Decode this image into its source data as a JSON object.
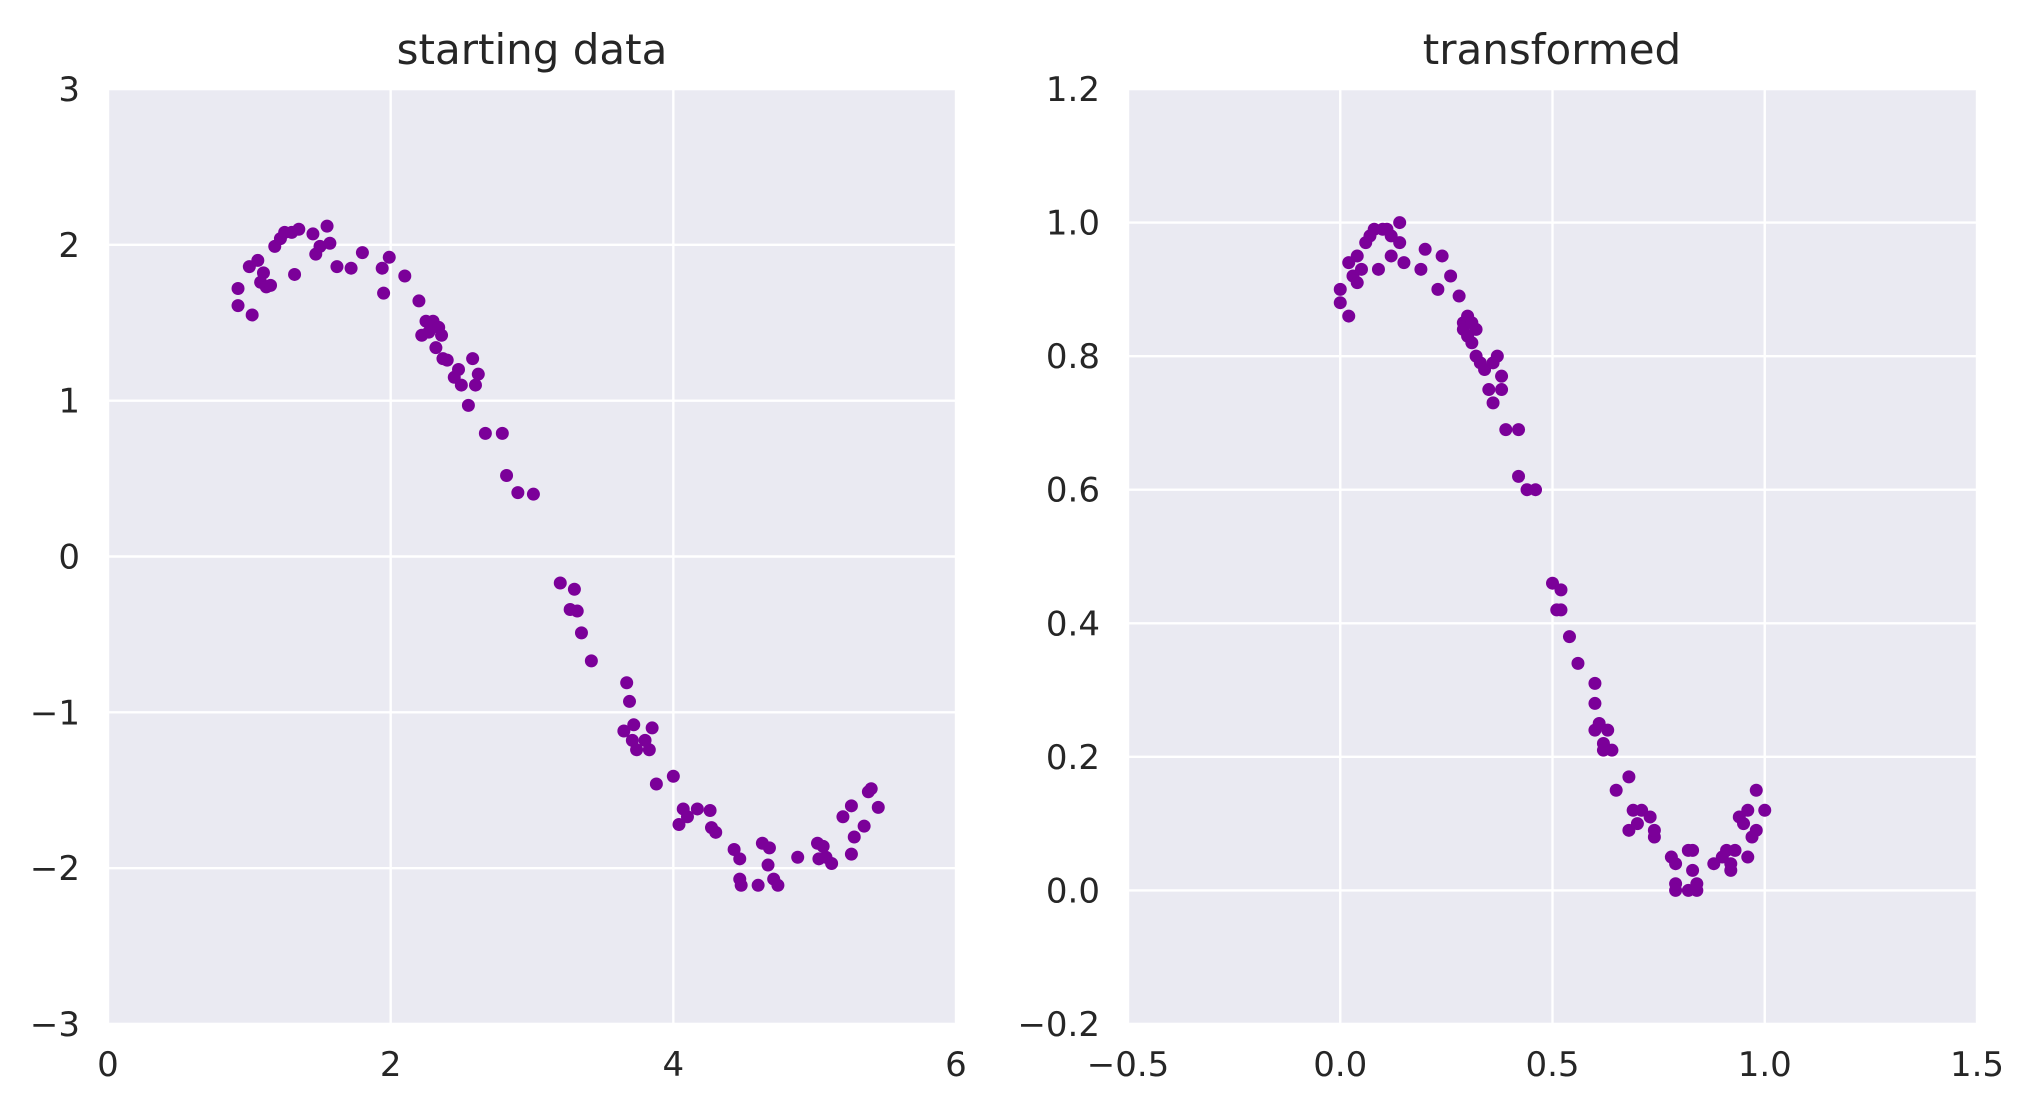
{
  "figure": {
    "background": "#ffffff",
    "plot_background": "#eaeaf2",
    "grid_color": "#ffffff",
    "marker_color": "#7b0099"
  },
  "chart_data": [
    {
      "type": "scatter",
      "title": "starting data",
      "xlabel": "",
      "ylabel": "",
      "xlim": [
        0,
        6
      ],
      "ylim": [
        -3,
        3
      ],
      "xticks": [
        0,
        2,
        4,
        6
      ],
      "xtick_labels": [
        "0",
        "2",
        "4",
        "6"
      ],
      "yticks": [
        3,
        2,
        1,
        0,
        -1,
        -2,
        -3
      ],
      "ytick_labels": [
        "3",
        "2",
        "1",
        "0",
        "−1",
        "−2",
        "−3"
      ],
      "grid": true,
      "series": [
        {
          "color": "#7b0099",
          "points": [
            [
              0.92,
              1.72
            ],
            [
              0.92,
              1.61
            ],
            [
              1.0,
              1.86
            ],
            [
              1.02,
              1.55
            ],
            [
              1.06,
              1.9
            ],
            [
              1.08,
              1.76
            ],
            [
              1.1,
              1.82
            ],
            [
              1.12,
              1.73
            ],
            [
              1.15,
              1.74
            ],
            [
              1.18,
              1.99
            ],
            [
              1.22,
              2.04
            ],
            [
              1.25,
              2.08
            ],
            [
              1.3,
              2.08
            ],
            [
              1.35,
              2.1
            ],
            [
              1.32,
              1.81
            ],
            [
              1.45,
              2.07
            ],
            [
              1.47,
              1.94
            ],
            [
              1.5,
              1.99
            ],
            [
              1.55,
              2.12
            ],
            [
              1.57,
              2.01
            ],
            [
              1.62,
              1.86
            ],
            [
              1.72,
              1.85
            ],
            [
              1.8,
              1.95
            ],
            [
              1.94,
              1.85
            ],
            [
              1.95,
              1.69
            ],
            [
              1.99,
              1.92
            ],
            [
              2.1,
              1.8
            ],
            [
              2.2,
              1.64
            ],
            [
              2.22,
              1.42
            ],
            [
              2.25,
              1.51
            ],
            [
              2.27,
              1.44
            ],
            [
              2.3,
              1.51
            ],
            [
              2.32,
              1.34
            ],
            [
              2.34,
              1.47
            ],
            [
              2.36,
              1.42
            ],
            [
              2.37,
              1.27
            ],
            [
              2.4,
              1.26
            ],
            [
              2.45,
              1.15
            ],
            [
              2.48,
              1.2
            ],
            [
              2.5,
              1.1
            ],
            [
              2.55,
              0.97
            ],
            [
              2.58,
              1.27
            ],
            [
              2.6,
              1.1
            ],
            [
              2.62,
              1.17
            ],
            [
              2.67,
              0.79
            ],
            [
              2.79,
              0.79
            ],
            [
              2.82,
              0.52
            ],
            [
              2.9,
              0.41
            ],
            [
              3.01,
              0.4
            ],
            [
              3.2,
              -0.17
            ],
            [
              3.27,
              -0.34
            ],
            [
              3.3,
              -0.21
            ],
            [
              3.32,
              -0.35
            ],
            [
              3.35,
              -0.49
            ],
            [
              3.42,
              -0.67
            ],
            [
              3.65,
              -1.12
            ],
            [
              3.67,
              -0.81
            ],
            [
              3.69,
              -0.93
            ],
            [
              3.71,
              -1.18
            ],
            [
              3.72,
              -1.08
            ],
            [
              3.74,
              -1.24
            ],
            [
              3.8,
              -1.18
            ],
            [
              3.83,
              -1.24
            ],
            [
              3.85,
              -1.1
            ],
            [
              3.88,
              -1.46
            ],
            [
              4.0,
              -1.41
            ],
            [
              4.04,
              -1.72
            ],
            [
              4.07,
              -1.62
            ],
            [
              4.1,
              -1.67
            ],
            [
              4.17,
              -1.62
            ],
            [
              4.26,
              -1.63
            ],
            [
              4.27,
              -1.74
            ],
            [
              4.3,
              -1.77
            ],
            [
              4.43,
              -1.88
            ],
            [
              4.47,
              -1.94
            ],
            [
              4.47,
              -2.07
            ],
            [
              4.48,
              -2.11
            ],
            [
              4.6,
              -2.11
            ],
            [
              4.63,
              -1.84
            ],
            [
              4.67,
              -1.98
            ],
            [
              4.68,
              -1.87
            ],
            [
              4.71,
              -2.07
            ],
            [
              4.74,
              -2.11
            ],
            [
              4.88,
              -1.93
            ],
            [
              5.02,
              -1.84
            ],
            [
              5.03,
              -1.94
            ],
            [
              5.06,
              -1.86
            ],
            [
              5.08,
              -1.93
            ],
            [
              5.12,
              -1.97
            ],
            [
              5.2,
              -1.67
            ],
            [
              5.26,
              -1.91
            ],
            [
              5.26,
              -1.6
            ],
            [
              5.28,
              -1.8
            ],
            [
              5.35,
              -1.73
            ],
            [
              5.38,
              -1.51
            ],
            [
              5.4,
              -1.49
            ],
            [
              5.45,
              -1.61
            ]
          ]
        }
      ]
    },
    {
      "type": "scatter",
      "title": "transformed",
      "xlabel": "",
      "ylabel": "",
      "xlim": [
        -0.5,
        1.5
      ],
      "ylim": [
        -0.2,
        1.2
      ],
      "xticks": [
        -0.5,
        0.0,
        0.5,
        1.0,
        1.5
      ],
      "xtick_labels": [
        "−0.5",
        "0.0",
        "0.5",
        "1.0",
        "1.5"
      ],
      "yticks": [
        1.2,
        1.0,
        0.8,
        0.6,
        0.4,
        0.2,
        0.0,
        -0.2
      ],
      "ytick_labels": [
        "1.2",
        "1.0",
        "0.8",
        "0.6",
        "0.4",
        "0.2",
        "0.0",
        "−0.2"
      ],
      "grid": true,
      "series": [
        {
          "color": "#7b0099",
          "points": [
            [
              0.0,
              0.88
            ],
            [
              0.0,
              0.9
            ],
            [
              0.02,
              0.94
            ],
            [
              0.02,
              0.86
            ],
            [
              0.03,
              0.92
            ],
            [
              0.04,
              0.95
            ],
            [
              0.04,
              0.91
            ],
            [
              0.05,
              0.93
            ],
            [
              0.06,
              0.97
            ],
            [
              0.07,
              0.98
            ],
            [
              0.08,
              0.99
            ],
            [
              0.09,
              0.93
            ],
            [
              0.1,
              0.99
            ],
            [
              0.11,
              0.99
            ],
            [
              0.12,
              0.95
            ],
            [
              0.12,
              0.98
            ],
            [
              0.14,
              1.0
            ],
            [
              0.14,
              0.97
            ],
            [
              0.15,
              0.94
            ],
            [
              0.19,
              0.93
            ],
            [
              0.2,
              0.96
            ],
            [
              0.23,
              0.9
            ],
            [
              0.24,
              0.95
            ],
            [
              0.26,
              0.92
            ],
            [
              0.28,
              0.89
            ],
            [
              0.29,
              0.85
            ],
            [
              0.29,
              0.84
            ],
            [
              0.3,
              0.86
            ],
            [
              0.3,
              0.83
            ],
            [
              0.31,
              0.85
            ],
            [
              0.31,
              0.82
            ],
            [
              0.32,
              0.8
            ],
            [
              0.32,
              0.84
            ],
            [
              0.33,
              0.79
            ],
            [
              0.34,
              0.78
            ],
            [
              0.35,
              0.75
            ],
            [
              0.36,
              0.79
            ],
            [
              0.36,
              0.73
            ],
            [
              0.37,
              0.8
            ],
            [
              0.38,
              0.77
            ],
            [
              0.38,
              0.75
            ],
            [
              0.39,
              0.69
            ],
            [
              0.42,
              0.69
            ],
            [
              0.42,
              0.62
            ],
            [
              0.44,
              0.6
            ],
            [
              0.46,
              0.6
            ],
            [
              0.5,
              0.46
            ],
            [
              0.51,
              0.42
            ],
            [
              0.52,
              0.45
            ],
            [
              0.52,
              0.42
            ],
            [
              0.54,
              0.38
            ],
            [
              0.56,
              0.34
            ],
            [
              0.6,
              0.31
            ],
            [
              0.6,
              0.28
            ],
            [
              0.6,
              0.24
            ],
            [
              0.61,
              0.25
            ],
            [
              0.62,
              0.22
            ],
            [
              0.62,
              0.21
            ],
            [
              0.63,
              0.24
            ],
            [
              0.64,
              0.21
            ],
            [
              0.65,
              0.15
            ],
            [
              0.68,
              0.17
            ],
            [
              0.68,
              0.09
            ],
            [
              0.69,
              0.12
            ],
            [
              0.7,
              0.1
            ],
            [
              0.71,
              0.12
            ],
            [
              0.73,
              0.11
            ],
            [
              0.74,
              0.08
            ],
            [
              0.74,
              0.09
            ],
            [
              0.78,
              0.05
            ],
            [
              0.79,
              0.04
            ],
            [
              0.79,
              0.01
            ],
            [
              0.79,
              0.0
            ],
            [
              0.82,
              0.06
            ],
            [
              0.82,
              0.0
            ],
            [
              0.83,
              0.06
            ],
            [
              0.83,
              0.03
            ],
            [
              0.84,
              0.01
            ],
            [
              0.84,
              0.0
            ],
            [
              0.88,
              0.04
            ],
            [
              0.9,
              0.05
            ],
            [
              0.91,
              0.06
            ],
            [
              0.92,
              0.04
            ],
            [
              0.92,
              0.03
            ],
            [
              0.93,
              0.06
            ],
            [
              0.94,
              0.11
            ],
            [
              0.95,
              0.1
            ],
            [
              0.96,
              0.05
            ],
            [
              0.96,
              0.12
            ],
            [
              0.97,
              0.08
            ],
            [
              0.98,
              0.09
            ],
            [
              0.98,
              0.15
            ],
            [
              1.0,
              0.12
            ]
          ]
        }
      ]
    }
  ]
}
